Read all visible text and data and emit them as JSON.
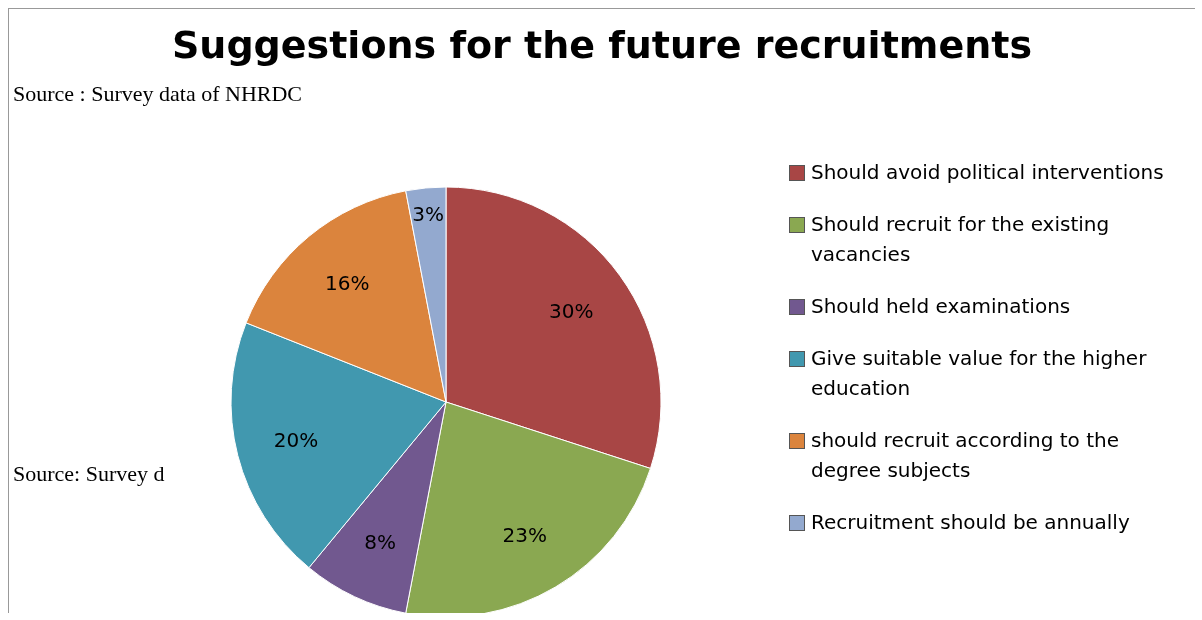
{
  "chart_data": {
    "type": "pie",
    "title": "Suggestions for the future recruitments",
    "categories": [
      "Should avoid political interventions",
      "Should recruit for the existing vacancies",
      "Should held examinations",
      "Give suitable value for the higher education",
      "should  recruit according to the degree subjects",
      "Recruitment should be annually"
    ],
    "values": [
      30,
      23,
      8,
      20,
      16,
      3
    ],
    "value_labels": [
      "30%",
      "23%",
      "8%",
      "20%",
      "16%",
      "3%"
    ],
    "colors": [
      "#a84645",
      "#8aa851",
      "#71588f",
      "#4198af",
      "#db843d",
      "#93a9cf"
    ],
    "legend": "right",
    "annotations": [
      "Source : Survey data of NHRDC",
      "Source: Survey d"
    ]
  }
}
